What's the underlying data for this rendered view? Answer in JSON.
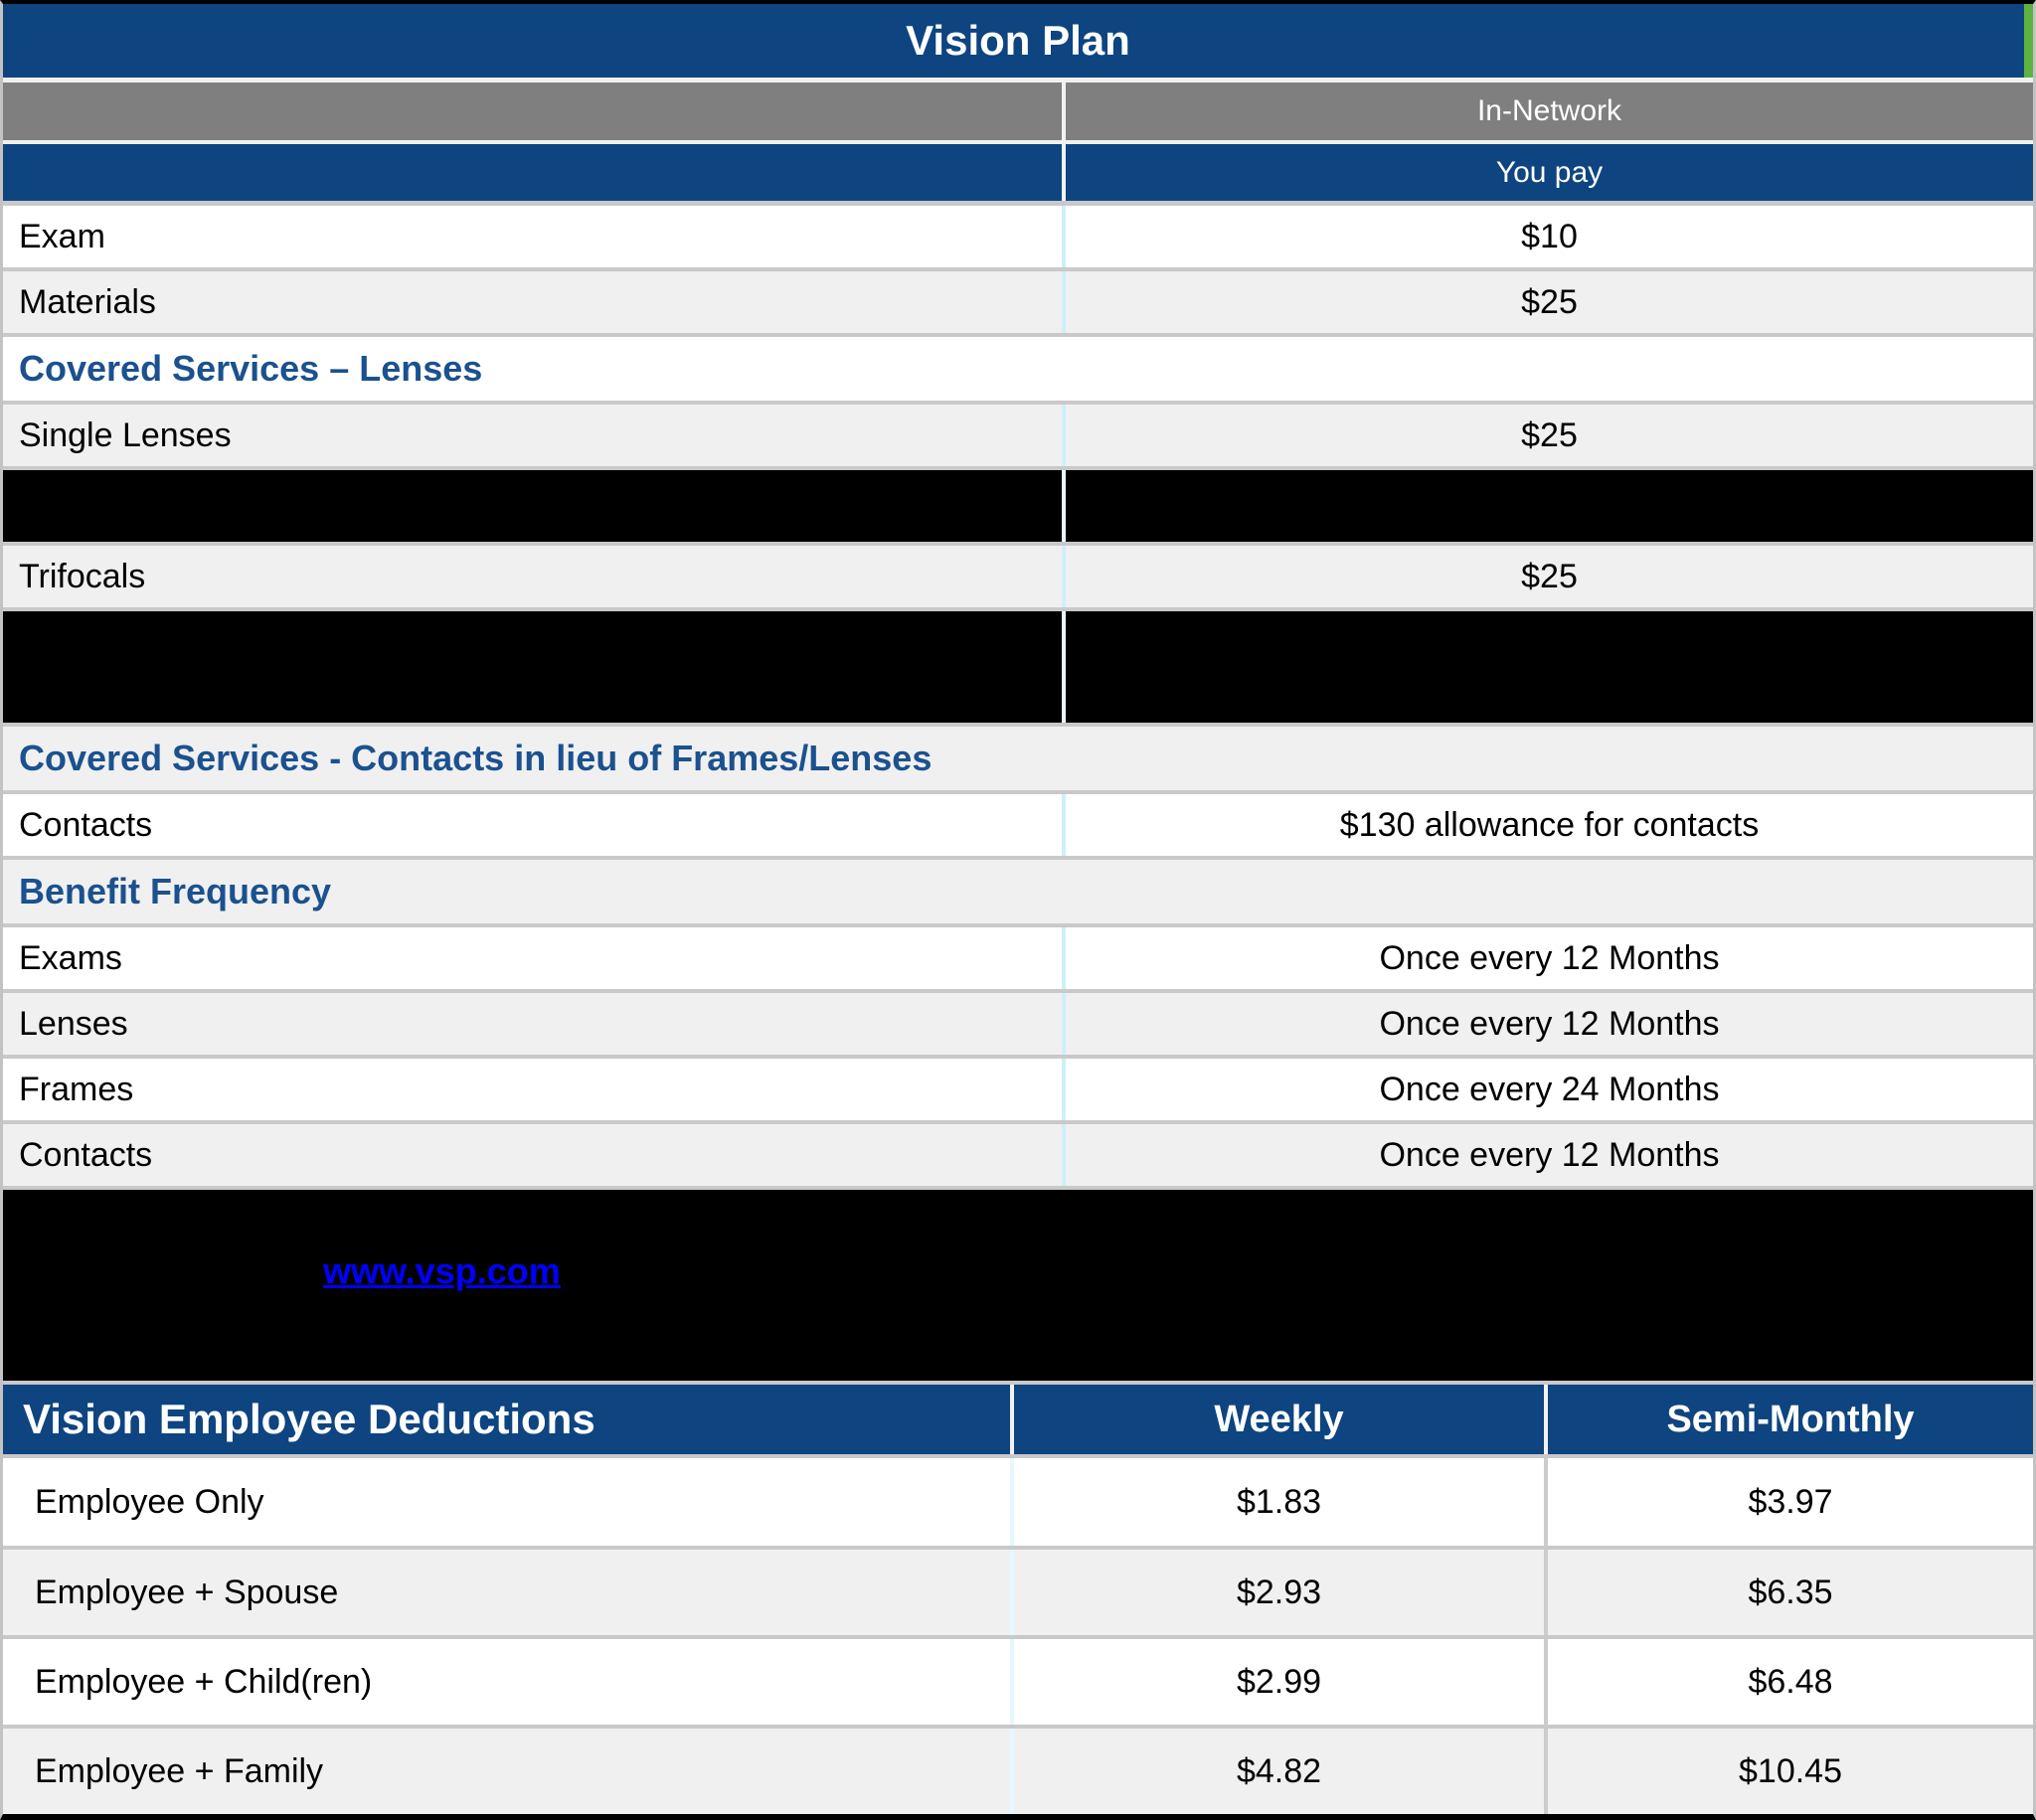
{
  "title": "Vision Plan",
  "colors": {
    "header_blue": "#0e4480",
    "header_gray": "#7f7f7f",
    "section_text_blue": "#1b518f",
    "row_alt_gray": "#f0f0f0",
    "link_blue": "#0000ff",
    "redaction_black": "#000000",
    "edge_green": "#5eb23f"
  },
  "main_table": {
    "network_header": "In-Network",
    "youpay_header": "You pay",
    "rows": [
      {
        "type": "data",
        "shade": "white",
        "label": "Exam",
        "value": "$10"
      },
      {
        "type": "data",
        "shade": "gray",
        "label": "Materials",
        "value": "$25"
      },
      {
        "type": "section",
        "shade": "white",
        "label": "Covered Services – Lenses"
      },
      {
        "type": "data",
        "shade": "gray",
        "label": "Single Lenses",
        "value": "$25"
      },
      {
        "type": "redacted",
        "size": "small"
      },
      {
        "type": "data",
        "shade": "gray",
        "label": "Trifocals",
        "value": "$25"
      },
      {
        "type": "redacted",
        "size": "large"
      },
      {
        "type": "section",
        "shade": "gray",
        "label": "Covered Services - Contacts in lieu of Frames/Lenses"
      },
      {
        "type": "data",
        "shade": "white",
        "label": "Contacts",
        "value": "$130 allowance for contacts"
      },
      {
        "type": "section",
        "shade": "gray",
        "label": "Benefit Frequency"
      },
      {
        "type": "data",
        "shade": "white",
        "label": "Exams",
        "value": "Once every 12 Months"
      },
      {
        "type": "data",
        "shade": "gray",
        "label": "Lenses",
        "value": "Once every 12 Months"
      },
      {
        "type": "data",
        "shade": "white",
        "label": "Frames",
        "value": "Once every 24 Months"
      },
      {
        "type": "data",
        "shade": "gray",
        "label": "Contacts",
        "value": "Once every 12 Months"
      }
    ]
  },
  "note_block": {
    "link_text": "www.vsp.com"
  },
  "deductions": {
    "title": "Vision Employee Deductions",
    "col_weekly": "Weekly",
    "col_semi_monthly": "Semi-Monthly",
    "rows": [
      {
        "shade": "white",
        "label": "Employee Only",
        "weekly": "$1.83",
        "semi_monthly": "$3.97"
      },
      {
        "shade": "gray",
        "label": "Employee + Spouse",
        "weekly": "$2.93",
        "semi_monthly": "$6.35"
      },
      {
        "shade": "white",
        "label": "Employee + Child(ren)",
        "weekly": "$2.99",
        "semi_monthly": "$6.48"
      },
      {
        "shade": "gray",
        "label": "Employee + Family",
        "weekly": "$4.82",
        "semi_monthly": "$10.45"
      }
    ]
  }
}
